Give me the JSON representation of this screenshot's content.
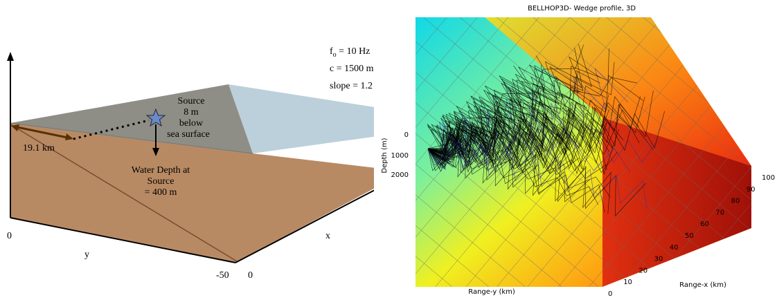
{
  "left_panel": {
    "params": [
      {
        "symbol": "f",
        "sub": "o",
        "rest": " = 10 Hz"
      },
      {
        "symbol": "c",
        "sub": "",
        "rest": " = 1500 m"
      },
      {
        "symbol": "slope",
        "sub": "",
        "rest": " = 1.2"
      }
    ],
    "source_label": [
      "Source",
      "8 m",
      "below",
      "sea surface"
    ],
    "distance_label": "19.1 km",
    "depth_label": [
      "Water Depth at",
      "Source",
      "= 400 m"
    ],
    "axis_labels": {
      "origin": "0",
      "y": "y",
      "y_end": "-50",
      "x_origin": "0",
      "x": "x"
    }
  },
  "right_panel": {
    "title": "BELLHOP3D- Wedge profile, 3D",
    "depth_axis_label": "Depth (m)",
    "depth_ticks": [
      "0",
      "1000",
      "2000"
    ],
    "range_y_label": "Range-y (km)",
    "range_x_label": "Range-x (km)",
    "range_x_ticks": [
      "0",
      "10",
      "20",
      "30",
      "40",
      "50",
      "60",
      "70",
      "80",
      "90",
      "100"
    ]
  }
}
